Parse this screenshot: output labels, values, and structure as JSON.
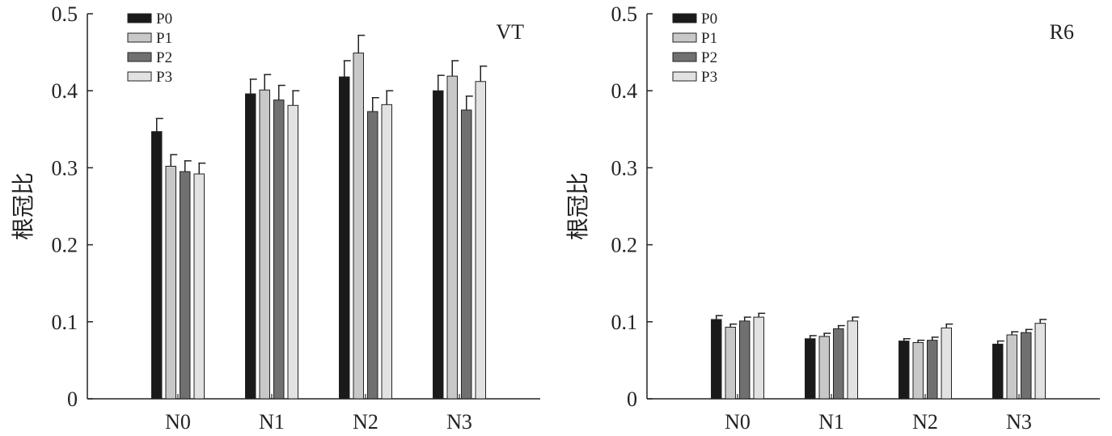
{
  "chart_data": [
    {
      "type": "bar",
      "title": "VT",
      "ylabel": "根冠比",
      "xlabel": "",
      "ylim": [
        0,
        0.5
      ],
      "yticks": [
        "0",
        "0.1",
        "0.2",
        "0.3",
        "0.4",
        "0.5"
      ],
      "categories": [
        "N0",
        "N1",
        "N2",
        "N3"
      ],
      "legend_position": "top-left",
      "series": [
        {
          "name": "P0",
          "values": [
            0.347,
            0.396,
            0.418,
            0.4
          ],
          "errors": [
            0.017,
            0.019,
            0.021,
            0.02
          ],
          "color": "#1a1a1a"
        },
        {
          "name": "P1",
          "values": [
            0.302,
            0.401,
            0.449,
            0.419
          ],
          "errors": [
            0.015,
            0.02,
            0.023,
            0.02
          ],
          "color": "#c8c8c8"
        },
        {
          "name": "P2",
          "values": [
            0.295,
            0.388,
            0.373,
            0.375
          ],
          "errors": [
            0.014,
            0.019,
            0.018,
            0.018
          ],
          "color": "#707070"
        },
        {
          "name": "P3",
          "values": [
            0.292,
            0.381,
            0.382,
            0.412
          ],
          "errors": [
            0.014,
            0.019,
            0.018,
            0.02
          ],
          "color": "#e2e2e2"
        }
      ]
    },
    {
      "type": "bar",
      "title": "R6",
      "ylabel": "根冠比",
      "xlabel": "",
      "ylim": [
        0,
        0.5
      ],
      "yticks": [
        "0",
        "0.1",
        "0.2",
        "0.3",
        "0.4",
        "0.5"
      ],
      "categories": [
        "N0",
        "N1",
        "N2",
        "N3"
      ],
      "legend_position": "top-left",
      "series": [
        {
          "name": "P0",
          "values": [
            0.103,
            0.078,
            0.075,
            0.071
          ],
          "errors": [
            0.005,
            0.004,
            0.003,
            0.004
          ],
          "color": "#1a1a1a"
        },
        {
          "name": "P1",
          "values": [
            0.093,
            0.081,
            0.073,
            0.083
          ],
          "errors": [
            0.004,
            0.004,
            0.003,
            0.004
          ],
          "color": "#c8c8c8"
        },
        {
          "name": "P2",
          "values": [
            0.101,
            0.091,
            0.076,
            0.086
          ],
          "errors": [
            0.005,
            0.004,
            0.004,
            0.004
          ],
          "color": "#707070"
        },
        {
          "name": "P3",
          "values": [
            0.106,
            0.101,
            0.092,
            0.098
          ],
          "errors": [
            0.005,
            0.005,
            0.005,
            0.005
          ],
          "color": "#e2e2e2"
        }
      ]
    }
  ]
}
